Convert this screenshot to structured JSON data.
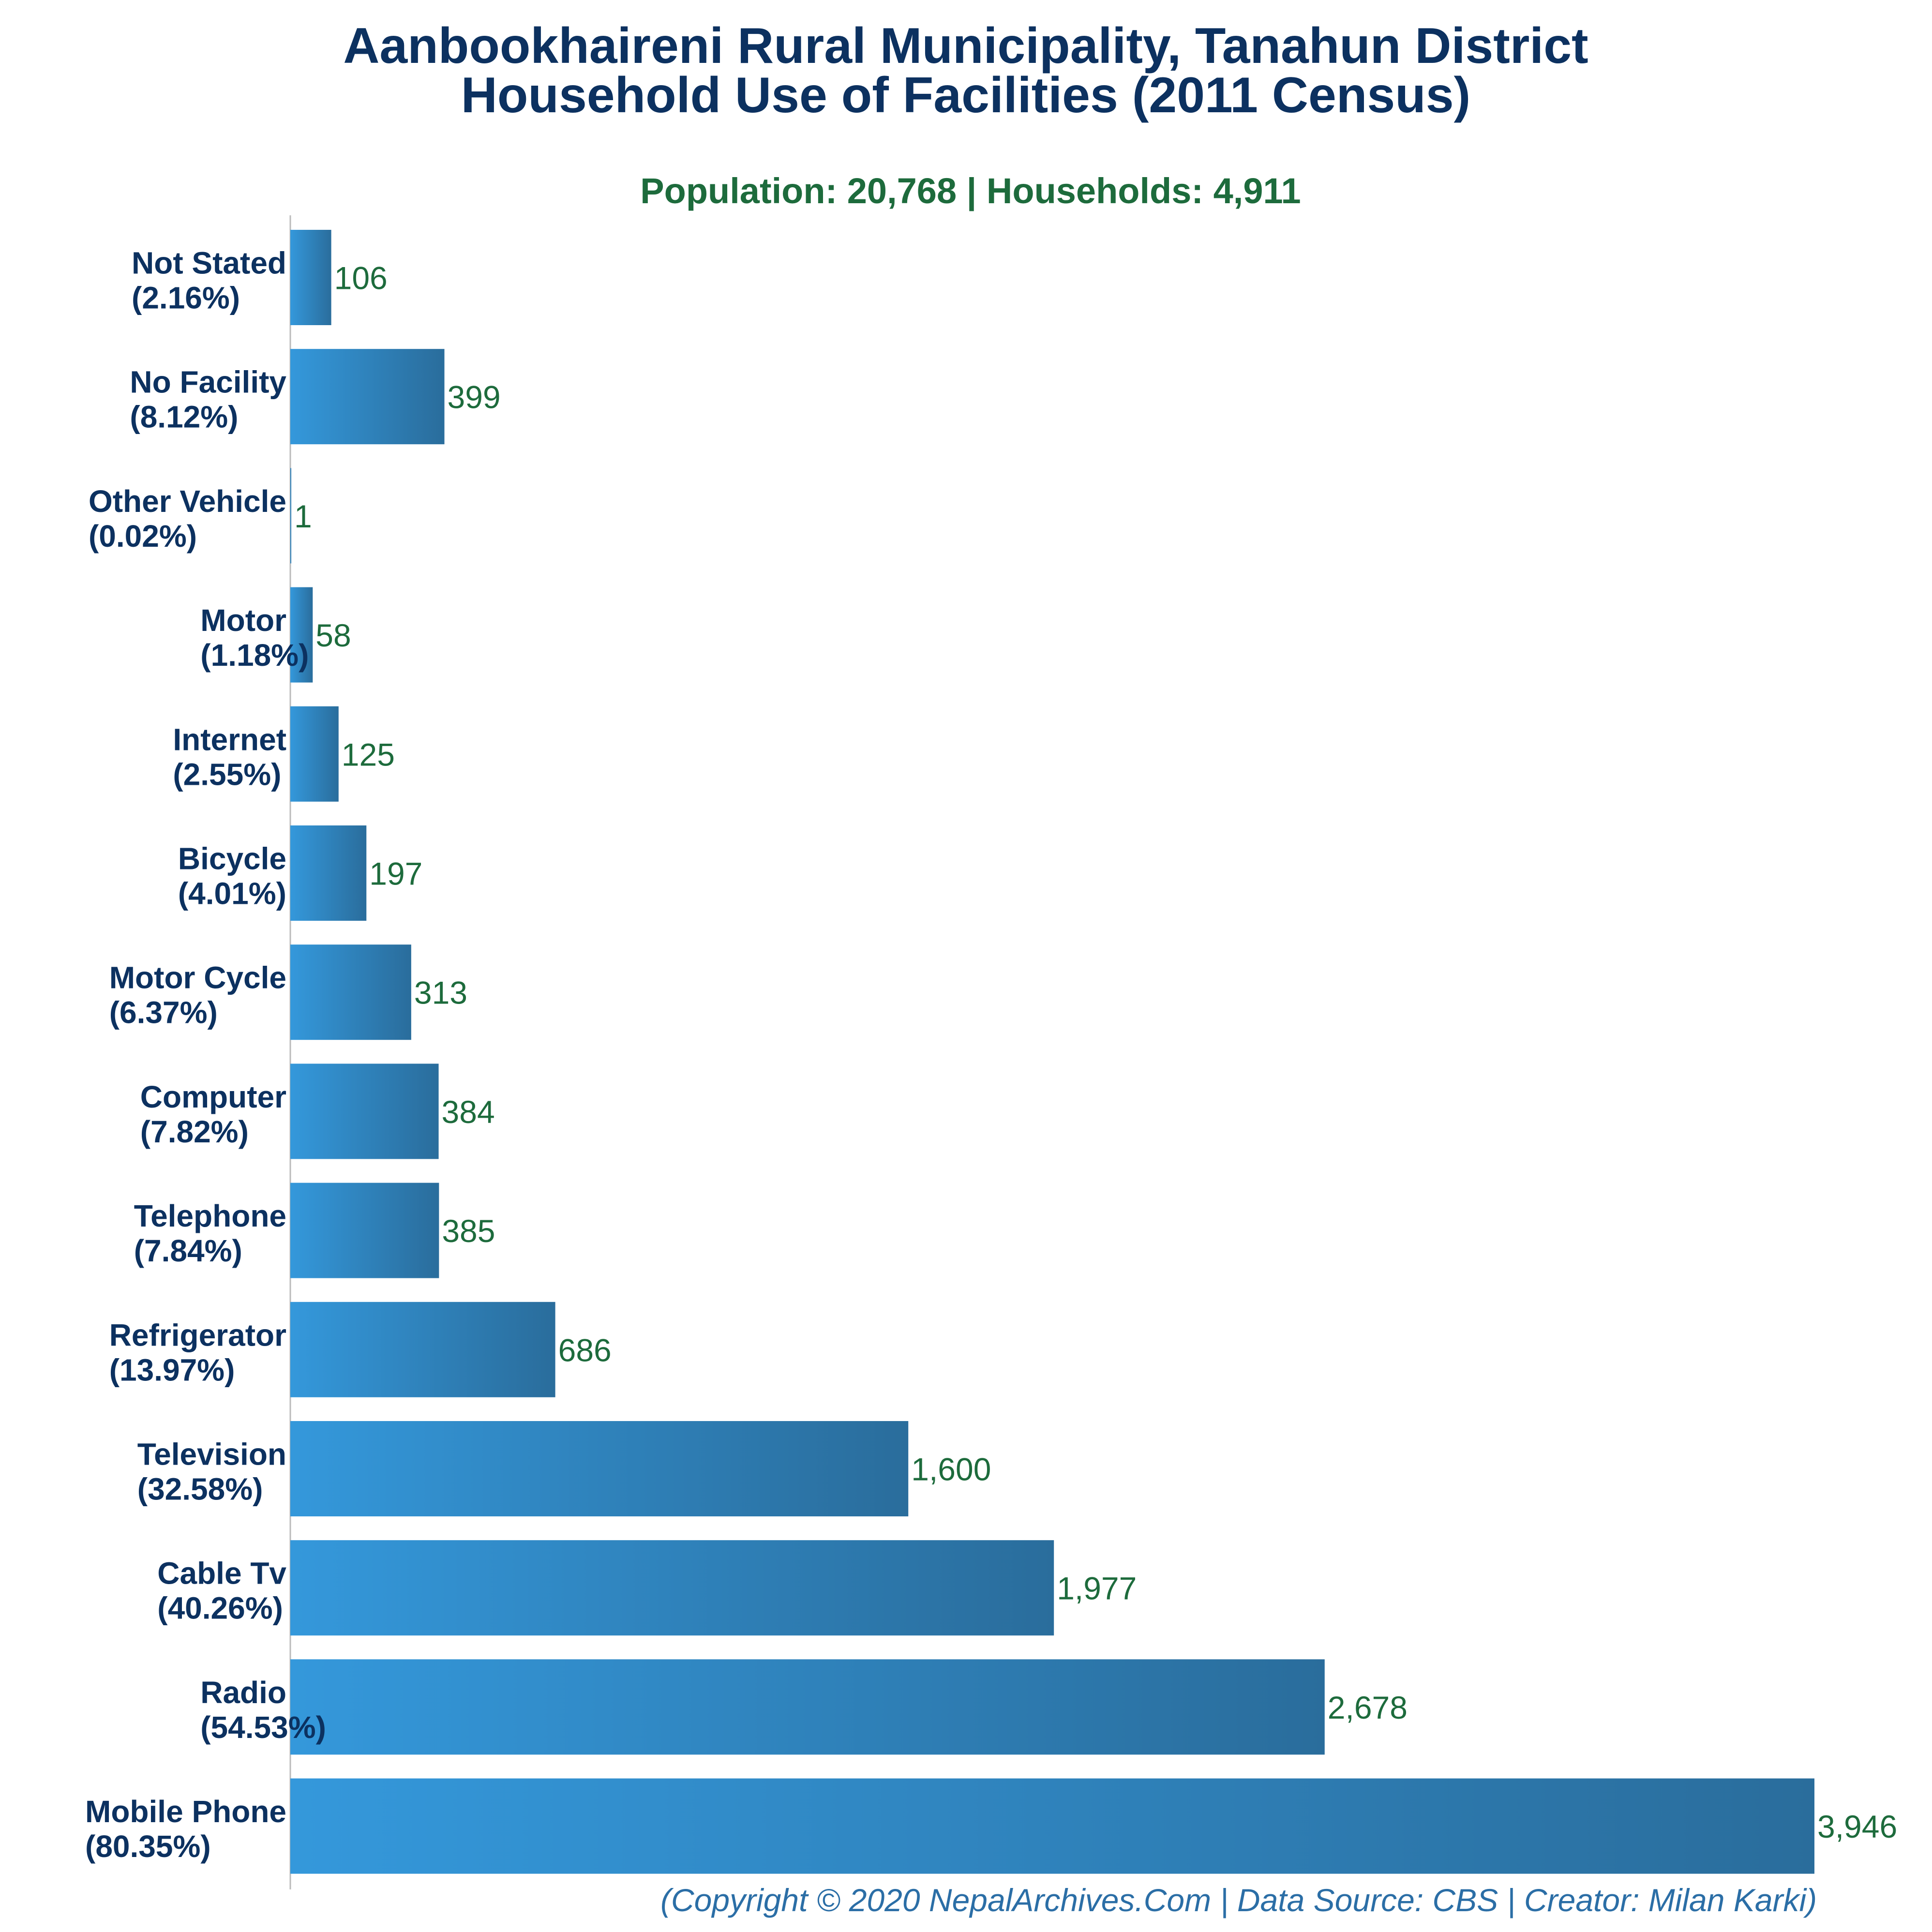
{
  "colors": {
    "title": "#0c3160",
    "subtitle": "#1d6b3c",
    "value_label": "#1d6b3c",
    "footer": "#2b6ea6",
    "bar_start": "#3498db",
    "bar_end": "#2a6d9c",
    "axis": "#bbbbbb"
  },
  "chart_data": {
    "type": "bar",
    "orientation": "horizontal",
    "title_line1": "Aanbookhaireni Rural Municipality, Tanahun District",
    "title_line2": "Household Use of Facilities (2011 Census)",
    "subtitle": "Population: 20,768 | Households: 4,911",
    "footer": "(Copyright © 2020 NepalArchives.Com | Data Source: CBS | Creator: Milan Karki)",
    "xlabel": "",
    "ylabel": "",
    "xlim": [
      0,
      3946
    ],
    "grid": false,
    "legend": "none",
    "categories": [
      "Not Stated",
      "No Facility",
      "Other Vehicle",
      "Motor",
      "Internet",
      "Bicycle",
      "Motor Cycle",
      "Computer",
      "Telephone",
      "Refrigerator",
      "Television",
      "Cable Tv",
      "Radio",
      "Mobile Phone"
    ],
    "percent_labels": [
      "(2.16%)",
      "(8.12%)",
      "(0.02%)",
      "(1.18%)",
      "(2.55%)",
      "(4.01%)",
      "(6.37%)",
      "(7.82%)",
      "(7.84%)",
      "(13.97%)",
      "(32.58%)",
      "(40.26%)",
      "(54.53%)",
      "(80.35%)"
    ],
    "values": [
      106,
      399,
      1,
      58,
      125,
      197,
      313,
      384,
      385,
      686,
      1600,
      1977,
      2678,
      3946
    ],
    "value_labels": [
      "106",
      "399",
      "1",
      "58",
      "125",
      "197",
      "313",
      "384",
      "385",
      "686",
      "1,600",
      "1,977",
      "2,678",
      "3,946"
    ]
  }
}
